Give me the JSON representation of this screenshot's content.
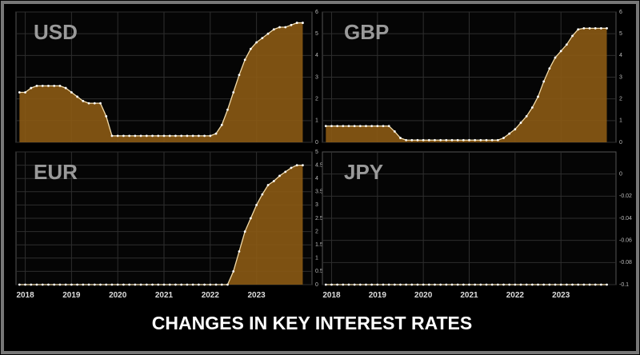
{
  "title": "CHANGES IN KEY INTEREST RATES",
  "chart_data": [
    {
      "type": "area",
      "title": "USD",
      "color": "#8b5a14",
      "line_color": "#f3dcaa",
      "grid": true,
      "show_xtick_labels": false,
      "x": [
        2017.875,
        2018,
        2018.125,
        2018.25,
        2018.375,
        2018.5,
        2018.625,
        2018.75,
        2018.875,
        2019,
        2019.125,
        2019.25,
        2019.375,
        2019.5,
        2019.625,
        2019.75,
        2019.875,
        2020,
        2020.125,
        2020.25,
        2020.375,
        2020.5,
        2020.625,
        2020.75,
        2020.875,
        2021,
        2021.125,
        2021.25,
        2021.375,
        2021.5,
        2021.625,
        2021.75,
        2021.875,
        2022,
        2022.125,
        2022.25,
        2022.375,
        2022.5,
        2022.625,
        2022.75,
        2022.875,
        2023,
        2023.125,
        2023.25,
        2023.375,
        2023.5,
        2023.625,
        2023.75,
        2023.875,
        2024
      ],
      "values": [
        2.3,
        2.3,
        2.5,
        2.6,
        2.6,
        2.6,
        2.6,
        2.6,
        2.5,
        2.3,
        2.1,
        1.9,
        1.8,
        1.8,
        1.8,
        1.2,
        0.3,
        0.3,
        0.3,
        0.3,
        0.3,
        0.3,
        0.3,
        0.3,
        0.3,
        0.3,
        0.3,
        0.3,
        0.3,
        0.3,
        0.3,
        0.3,
        0.3,
        0.3,
        0.4,
        0.8,
        1.5,
        2.3,
        3.1,
        3.8,
        4.3,
        4.6,
        4.8,
        5.0,
        5.2,
        5.3,
        5.3,
        5.4,
        5.5,
        5.5
      ],
      "xlim": [
        2017.8,
        2024.2
      ],
      "xticks": [
        2018,
        2019,
        2020,
        2021,
        2022,
        2023
      ],
      "ylim": [
        0,
        6
      ],
      "yticks": [
        0,
        1,
        2,
        3,
        4,
        5,
        6
      ]
    },
    {
      "type": "area",
      "title": "GBP",
      "color": "#8b5a14",
      "line_color": "#f3dcaa",
      "grid": true,
      "show_xtick_labels": false,
      "x": [
        2017.875,
        2018,
        2018.125,
        2018.25,
        2018.375,
        2018.5,
        2018.625,
        2018.75,
        2018.875,
        2019,
        2019.125,
        2019.25,
        2019.375,
        2019.5,
        2019.625,
        2019.75,
        2019.875,
        2020,
        2020.125,
        2020.25,
        2020.375,
        2020.5,
        2020.625,
        2020.75,
        2020.875,
        2021,
        2021.125,
        2021.25,
        2021.375,
        2021.5,
        2021.625,
        2021.75,
        2021.875,
        2022,
        2022.125,
        2022.25,
        2022.375,
        2022.5,
        2022.625,
        2022.75,
        2022.875,
        2023,
        2023.125,
        2023.25,
        2023.375,
        2023.5,
        2023.625,
        2023.75,
        2023.875,
        2024
      ],
      "values": [
        0.75,
        0.75,
        0.75,
        0.75,
        0.75,
        0.75,
        0.75,
        0.75,
        0.75,
        0.75,
        0.75,
        0.75,
        0.5,
        0.2,
        0.1,
        0.1,
        0.1,
        0.1,
        0.1,
        0.1,
        0.1,
        0.1,
        0.1,
        0.1,
        0.1,
        0.1,
        0.1,
        0.1,
        0.1,
        0.1,
        0.1,
        0.2,
        0.4,
        0.6,
        0.9,
        1.2,
        1.6,
        2.1,
        2.8,
        3.4,
        3.9,
        4.2,
        4.5,
        4.9,
        5.2,
        5.25,
        5.25,
        5.25,
        5.25,
        5.25
      ],
      "xlim": [
        2017.8,
        2024.2
      ],
      "xticks": [
        2018,
        2019,
        2020,
        2021,
        2022,
        2023
      ],
      "ylim": [
        0,
        6
      ],
      "yticks": [
        0,
        1,
        2,
        3,
        4,
        5,
        6
      ]
    },
    {
      "type": "area",
      "title": "EUR",
      "color": "#8b5a14",
      "line_color": "#f3dcaa",
      "grid": true,
      "show_xtick_labels": true,
      "x": [
        2017.875,
        2018,
        2018.125,
        2018.25,
        2018.375,
        2018.5,
        2018.625,
        2018.75,
        2018.875,
        2019,
        2019.125,
        2019.25,
        2019.375,
        2019.5,
        2019.625,
        2019.75,
        2019.875,
        2020,
        2020.125,
        2020.25,
        2020.375,
        2020.5,
        2020.625,
        2020.75,
        2020.875,
        2021,
        2021.125,
        2021.25,
        2021.375,
        2021.5,
        2021.625,
        2021.75,
        2021.875,
        2022,
        2022.125,
        2022.25,
        2022.375,
        2022.5,
        2022.625,
        2022.75,
        2022.875,
        2023,
        2023.125,
        2023.25,
        2023.375,
        2023.5,
        2023.625,
        2023.75,
        2023.875,
        2024
      ],
      "values": [
        0,
        0,
        0,
        0,
        0,
        0,
        0,
        0,
        0,
        0,
        0,
        0,
        0,
        0,
        0,
        0,
        0,
        0,
        0,
        0,
        0,
        0,
        0,
        0,
        0,
        0,
        0,
        0,
        0,
        0,
        0,
        0,
        0,
        0,
        0,
        0,
        0,
        0.5,
        1.25,
        2.0,
        2.5,
        3.0,
        3.4,
        3.75,
        3.9,
        4.1,
        4.25,
        4.4,
        4.5,
        4.5
      ],
      "xlim": [
        2017.8,
        2024.2
      ],
      "xticks": [
        2018,
        2019,
        2020,
        2021,
        2022,
        2023
      ],
      "ylim": [
        0,
        5
      ],
      "yticks": [
        0,
        0.5,
        1,
        1.5,
        2,
        2.5,
        3,
        3.5,
        4,
        4.5,
        5
      ]
    },
    {
      "type": "area",
      "title": "JPY",
      "color": "#8b5a14",
      "line_color": "#f3dcaa",
      "grid": true,
      "show_xtick_labels": true,
      "x": [
        2017.875,
        2018,
        2018.125,
        2018.25,
        2018.375,
        2018.5,
        2018.625,
        2018.75,
        2018.875,
        2019,
        2019.125,
        2019.25,
        2019.375,
        2019.5,
        2019.625,
        2019.75,
        2019.875,
        2020,
        2020.125,
        2020.25,
        2020.375,
        2020.5,
        2020.625,
        2020.75,
        2020.875,
        2021,
        2021.125,
        2021.25,
        2021.375,
        2021.5,
        2021.625,
        2021.75,
        2021.875,
        2022,
        2022.125,
        2022.25,
        2022.375,
        2022.5,
        2022.625,
        2022.75,
        2022.875,
        2023,
        2023.125,
        2023.25,
        2023.375,
        2023.5,
        2023.625,
        2023.75,
        2023.875,
        2024
      ],
      "values": [
        -0.1,
        -0.1,
        -0.1,
        -0.1,
        -0.1,
        -0.1,
        -0.1,
        -0.1,
        -0.1,
        -0.1,
        -0.1,
        -0.1,
        -0.1,
        -0.1,
        -0.1,
        -0.1,
        -0.1,
        -0.1,
        -0.1,
        -0.1,
        -0.1,
        -0.1,
        -0.1,
        -0.1,
        -0.1,
        -0.1,
        -0.1,
        -0.1,
        -0.1,
        -0.1,
        -0.1,
        -0.1,
        -0.1,
        -0.1,
        -0.1,
        -0.1,
        -0.1,
        -0.1,
        -0.1,
        -0.1,
        -0.1,
        -0.1,
        -0.1,
        -0.1,
        -0.1,
        -0.1,
        -0.1,
        -0.1,
        -0.1,
        -0.1
      ],
      "xlim": [
        2017.8,
        2024.2
      ],
      "xticks": [
        2018,
        2019,
        2020,
        2021,
        2022,
        2023
      ],
      "ylim": [
        -0.1,
        0.02
      ],
      "yticks": [
        -0.1,
        -0.08,
        -0.06,
        -0.04,
        -0.02,
        0
      ]
    }
  ]
}
